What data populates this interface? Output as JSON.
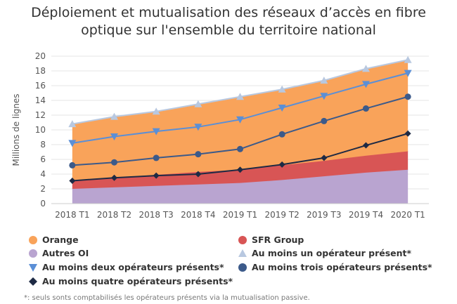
{
  "title_line1": "Déploiement et mutualisation des réseaux d’accès en fibre",
  "title_line2": "optique sur l'ensemble du territoire national",
  "footnote": "*: seuls sonts comptabilisés les opérateurs présents via la mutualisation passive.",
  "chart_data": {
    "type": "area",
    "categories": [
      "2018 T1",
      "2018 T2",
      "2018 T3",
      "2018 T4",
      "2019 T1",
      "2019 T2",
      "2019 T3",
      "2019 T4",
      "2020 T1"
    ],
    "ylabel": "Millions de lignes",
    "ylim": [
      0,
      20
    ],
    "yticks": [
      0,
      2,
      4,
      6,
      8,
      10,
      12,
      14,
      16,
      18,
      20
    ],
    "grid": true,
    "legend_position": "bottom",
    "stacked_areas": [
      {
        "name": "Autres OI",
        "color": "#b9a4d0",
        "values": [
          2.0,
          2.2,
          2.4,
          2.6,
          2.8,
          3.2,
          3.7,
          4.2,
          4.6
        ]
      },
      {
        "name": "SFR Group",
        "color": "#d85555",
        "values": [
          1.0,
          1.3,
          1.5,
          1.7,
          1.8,
          2.0,
          2.1,
          2.3,
          2.5
        ]
      },
      {
        "name": "Orange",
        "color": "#f9a35a",
        "values": [
          7.7,
          8.2,
          8.5,
          9.1,
          9.8,
          10.3,
          10.8,
          11.8,
          12.3
        ]
      }
    ],
    "line_series": [
      {
        "name": "Au moins un opérateur présent*",
        "color": "#b8c8e0",
        "marker": "triangle-up",
        "values": [
          10.8,
          11.8,
          12.5,
          13.5,
          14.5,
          15.5,
          16.7,
          18.3,
          19.5
        ]
      },
      {
        "name": "Au moins deux opérateurs présents*",
        "color": "#5b8fd6",
        "marker": "triangle-down",
        "values": [
          8.2,
          9.1,
          9.8,
          10.4,
          11.4,
          13.0,
          14.6,
          16.2,
          17.7
        ]
      },
      {
        "name": "Au moins trois opérateurs présents*",
        "color": "#3c5a8a",
        "marker": "circle",
        "values": [
          5.2,
          5.6,
          6.2,
          6.7,
          7.4,
          9.4,
          11.2,
          12.9,
          14.5
        ]
      },
      {
        "name": "Au moins quatre opérateurs présents*",
        "color": "#1e2a44",
        "marker": "diamond",
        "values": [
          3.1,
          3.5,
          3.8,
          4.0,
          4.6,
          5.3,
          6.2,
          7.9,
          9.5
        ]
      }
    ]
  }
}
